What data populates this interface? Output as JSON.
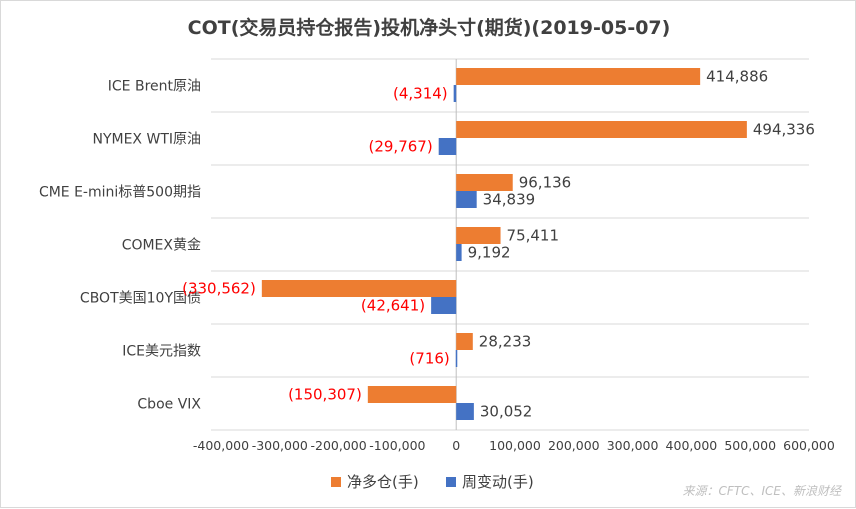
{
  "chart_data": {
    "type": "bar",
    "orientation": "horizontal",
    "title": "COT(交易员持仓报告)投机净头寸(期货)(2019-05-07)",
    "categories": [
      "ICE Brent原油",
      "NYMEX WTI原油",
      "CME E-mini标普500期指",
      "COMEX黄金",
      "CBOT美国10Y国债",
      "ICE美元指数",
      "Cboe VIX"
    ],
    "series": [
      {
        "name": "净多仓(手)",
        "color": "#ED7D31",
        "values": [
          414886,
          494336,
          96136,
          75411,
          -330562,
          28233,
          -150307
        ],
        "labels": [
          "414,886",
          "494,336",
          "96,136",
          "75,411",
          "(330,562)",
          "28,233",
          "(150,307)"
        ]
      },
      {
        "name": "周变动(手)",
        "color": "#4472C4",
        "values": [
          -4314,
          -29767,
          34839,
          9192,
          -42641,
          -716,
          30052
        ],
        "labels": [
          "(4,314)",
          "(29,767)",
          "34,839",
          "9,192",
          "(42,641)",
          "(716)",
          "30,052"
        ]
      }
    ],
    "xlim": [
      -400000,
      600000
    ],
    "x_ticks": [
      -400000,
      -300000,
      -200000,
      -100000,
      0,
      100000,
      200000,
      300000,
      400000,
      500000,
      600000
    ],
    "x_tick_labels": [
      "-400,000",
      "-300,000",
      "-200,000",
      "-100,000",
      "0",
      "100,000",
      "200,000",
      "300,000",
      "400,000",
      "500,000",
      "600,000"
    ],
    "negative_label_color": "#FF0000",
    "positive_label_color": "#404040",
    "grid": "horizontal separators",
    "legend": "bottom",
    "source": "来源：CFTC、ICE、新浪财经"
  }
}
